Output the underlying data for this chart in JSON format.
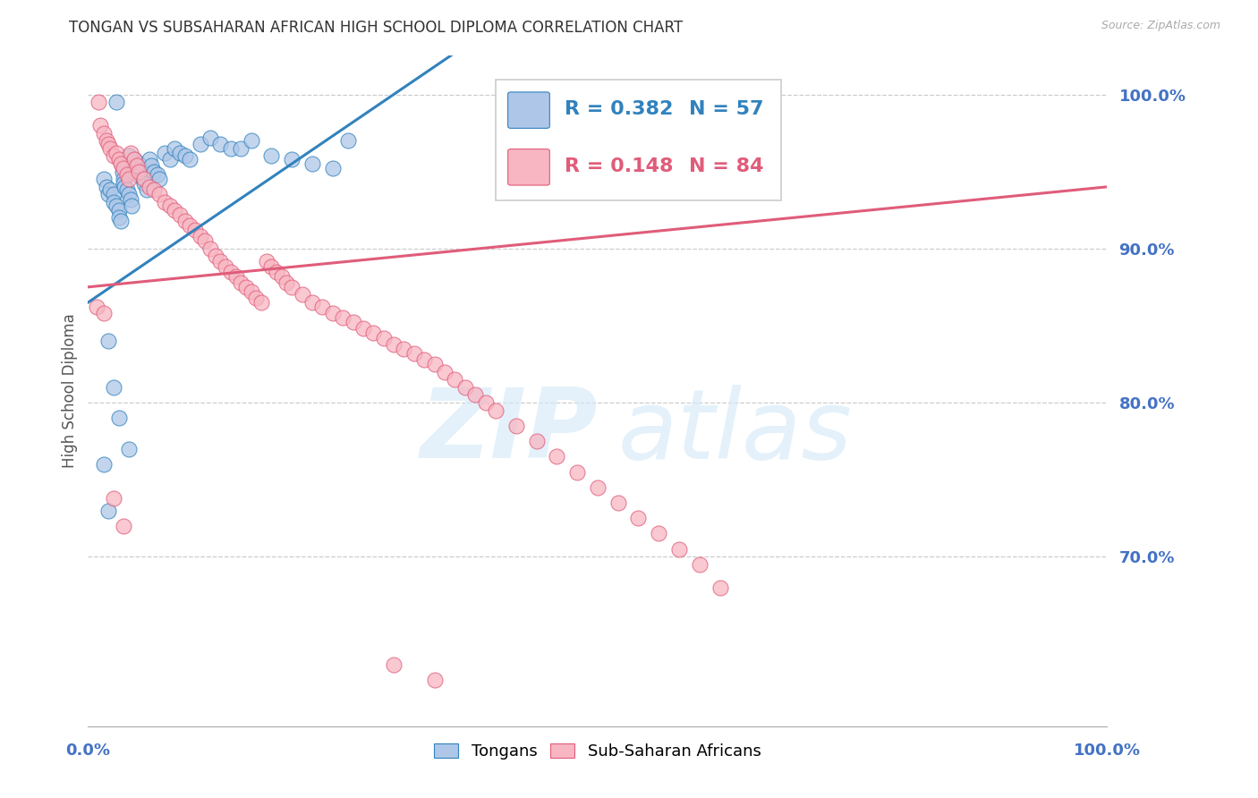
{
  "title": "TONGAN VS SUBSAHARAN AFRICAN HIGH SCHOOL DIPLOMA CORRELATION CHART",
  "source": "Source: ZipAtlas.com",
  "ylabel": "High School Diploma",
  "blue_color": "#aec7e8",
  "pink_color": "#f7b6c2",
  "blue_line_color": "#3182bd",
  "pink_line_color": "#e05c7a",
  "right_label_color": "#4472c4",
  "title_color": "#333333",
  "grid_color": "#cccccc",
  "legend_blue_r": "0.382",
  "legend_blue_n": "57",
  "legend_pink_r": "0.148",
  "legend_pink_n": "84",
  "xlim": [
    0.0,
    1.0
  ],
  "ylim": [
    0.59,
    1.025
  ],
  "yticks": [
    0.7,
    0.8,
    0.9,
    1.0
  ],
  "ytick_labels": [
    "70.0%",
    "80.0%",
    "90.0%",
    "100.0%"
  ],
  "tongans_x": [
    0.015,
    0.018,
    0.02,
    0.022,
    0.025,
    0.025,
    0.028,
    0.03,
    0.03,
    0.032,
    0.033,
    0.034,
    0.035,
    0.035,
    0.036,
    0.038,
    0.04,
    0.04,
    0.042,
    0.043,
    0.045,
    0.046,
    0.048,
    0.05,
    0.052,
    0.053,
    0.055,
    0.058,
    0.06,
    0.062,
    0.065,
    0.068,
    0.07,
    0.075,
    0.08,
    0.085,
    0.09,
    0.095,
    0.1,
    0.11,
    0.12,
    0.13,
    0.14,
    0.15,
    0.16,
    0.18,
    0.2,
    0.22,
    0.24,
    0.255,
    0.02,
    0.025,
    0.03,
    0.04,
    0.015,
    0.02,
    0.028
  ],
  "tongans_y": [
    0.945,
    0.94,
    0.935,
    0.938,
    0.935,
    0.93,
    0.928,
    0.925,
    0.92,
    0.918,
    0.955,
    0.95,
    0.945,
    0.942,
    0.94,
    0.938,
    0.96,
    0.935,
    0.932,
    0.928,
    0.958,
    0.952,
    0.948,
    0.955,
    0.95,
    0.946,
    0.942,
    0.938,
    0.958,
    0.954,
    0.95,
    0.948,
    0.945,
    0.962,
    0.958,
    0.965,
    0.962,
    0.96,
    0.958,
    0.968,
    0.972,
    0.968,
    0.965,
    0.965,
    0.97,
    0.96,
    0.958,
    0.955,
    0.952,
    0.97,
    0.84,
    0.81,
    0.79,
    0.77,
    0.76,
    0.73,
    0.995
  ],
  "subsaharan_x": [
    0.01,
    0.012,
    0.015,
    0.018,
    0.02,
    0.022,
    0.025,
    0.028,
    0.03,
    0.032,
    0.035,
    0.038,
    0.04,
    0.042,
    0.045,
    0.048,
    0.05,
    0.055,
    0.06,
    0.065,
    0.07,
    0.075,
    0.08,
    0.085,
    0.09,
    0.095,
    0.1,
    0.105,
    0.11,
    0.115,
    0.12,
    0.125,
    0.13,
    0.135,
    0.14,
    0.145,
    0.15,
    0.155,
    0.16,
    0.165,
    0.17,
    0.175,
    0.18,
    0.185,
    0.19,
    0.195,
    0.2,
    0.21,
    0.22,
    0.23,
    0.24,
    0.25,
    0.26,
    0.27,
    0.28,
    0.29,
    0.3,
    0.31,
    0.32,
    0.33,
    0.34,
    0.35,
    0.36,
    0.37,
    0.38,
    0.39,
    0.4,
    0.42,
    0.44,
    0.46,
    0.48,
    0.5,
    0.52,
    0.54,
    0.56,
    0.58,
    0.6,
    0.62,
    0.008,
    0.015,
    0.025,
    0.035,
    0.3,
    0.34
  ],
  "subsaharan_y": [
    0.995,
    0.98,
    0.975,
    0.97,
    0.968,
    0.965,
    0.96,
    0.962,
    0.958,
    0.955,
    0.952,
    0.948,
    0.945,
    0.962,
    0.958,
    0.954,
    0.95,
    0.945,
    0.94,
    0.938,
    0.935,
    0.93,
    0.928,
    0.925,
    0.922,
    0.918,
    0.915,
    0.912,
    0.908,
    0.905,
    0.9,
    0.895,
    0.892,
    0.888,
    0.885,
    0.882,
    0.878,
    0.875,
    0.872,
    0.868,
    0.865,
    0.892,
    0.888,
    0.885,
    0.882,
    0.878,
    0.875,
    0.87,
    0.865,
    0.862,
    0.858,
    0.855,
    0.852,
    0.848,
    0.845,
    0.842,
    0.838,
    0.835,
    0.832,
    0.828,
    0.825,
    0.82,
    0.815,
    0.81,
    0.805,
    0.8,
    0.795,
    0.785,
    0.775,
    0.765,
    0.755,
    0.745,
    0.735,
    0.725,
    0.715,
    0.705,
    0.695,
    0.68,
    0.862,
    0.858,
    0.738,
    0.72,
    0.63,
    0.62
  ]
}
